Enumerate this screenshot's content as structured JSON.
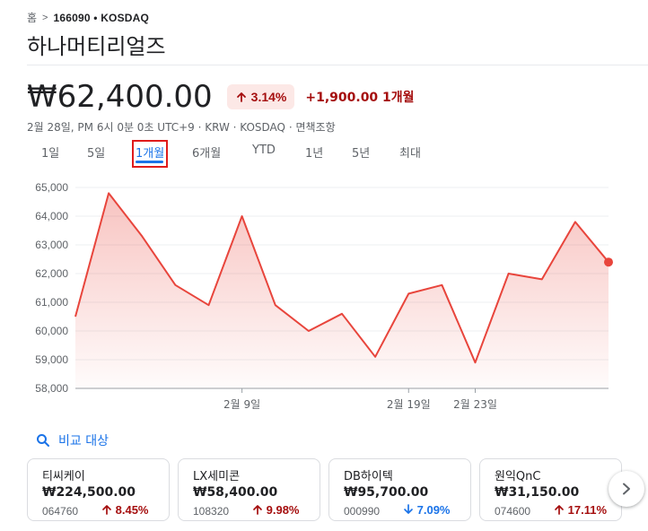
{
  "breadcrumb": {
    "home": "홈",
    "ticker": "166090 • KOSDAQ"
  },
  "stock": {
    "name": "하나머티리얼즈",
    "price": "₩62,400.00",
    "change_pct": "3.14%",
    "change_abs": "+1,900.00 1개월",
    "meta": "2월 28일, PM 6시 0분 0초 UTC+9 · KRW · KOSDAQ · 면책조항"
  },
  "colors": {
    "positive": "#a50e0e",
    "negative": "#1a73e8",
    "line": "#e8453c",
    "accent": "#1a73e8"
  },
  "ranges": {
    "active_index": 2,
    "items": [
      {
        "label": "1일",
        "name": "range-1d"
      },
      {
        "label": "5일",
        "name": "range-5d"
      },
      {
        "label": "1개월",
        "name": "range-1m"
      },
      {
        "label": "6개월",
        "name": "range-6m"
      },
      {
        "label": "YTD",
        "name": "range-ytd"
      },
      {
        "label": "1년",
        "name": "range-1y"
      },
      {
        "label": "5년",
        "name": "range-5y"
      },
      {
        "label": "최대",
        "name": "range-max"
      }
    ]
  },
  "chart_data": {
    "type": "area",
    "ylim": [
      58000,
      65000
    ],
    "yticks": [
      "65,000",
      "64,000",
      "63,000",
      "62,000",
      "61,000",
      "60,000",
      "59,000",
      "58,000"
    ],
    "ytick_values": [
      65000,
      64000,
      63000,
      62000,
      61000,
      60000,
      59000,
      58000
    ],
    "xtick_labels": [
      "2월 9일",
      "2월 19일",
      "2월 23일"
    ],
    "xtick_index": [
      5,
      10,
      12
    ],
    "values": [
      60500,
      64800,
      63300,
      61600,
      60900,
      64000,
      60900,
      60000,
      60600,
      59100,
      61300,
      61600,
      58900,
      62000,
      61800,
      63800,
      62400
    ],
    "grid": true,
    "last_point_marker": true
  },
  "compare": {
    "label": "비교 대상",
    "icon": "search-icon"
  },
  "cards": [
    {
      "name": "티씨케이",
      "price": "₩224,500.00",
      "code": "064760",
      "pct": "8.45%",
      "dir": "up"
    },
    {
      "name": "LX세미콘",
      "price": "₩58,400.00",
      "code": "108320",
      "pct": "9.98%",
      "dir": "up"
    },
    {
      "name": "DB하이텍",
      "price": "₩95,700.00",
      "code": "000990",
      "pct": "7.09%",
      "dir": "down"
    },
    {
      "name": "원익QnC",
      "price": "₩31,150.00",
      "code": "074600",
      "pct": "17.11%",
      "dir": "up"
    }
  ]
}
